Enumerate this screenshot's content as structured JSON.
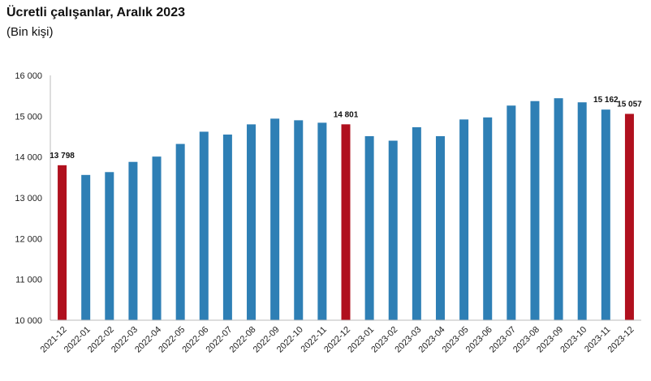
{
  "chart_data": {
    "type": "bar",
    "title": "Ücretli çalışanlar, Aralık 2023",
    "subtitle": "(Bin kişi)",
    "categories": [
      "2021-12",
      "2022-01",
      "2022-02",
      "2022-03",
      "2022-04",
      "2022-05",
      "2022-06",
      "2022-07",
      "2022-08",
      "2022-09",
      "2022-10",
      "2022-11",
      "2022-12",
      "2023-01",
      "2023-02",
      "2023-03",
      "2023-04",
      "2023-05",
      "2023-06",
      "2023-07",
      "2023-08",
      "2023-09",
      "2023-10",
      "2023-11",
      "2023-12"
    ],
    "values": [
      13798,
      13560,
      13630,
      13880,
      14010,
      14320,
      14620,
      14550,
      14800,
      14940,
      14900,
      14840,
      14801,
      14510,
      14400,
      14730,
      14510,
      14920,
      14970,
      15260,
      15370,
      15440,
      15340,
      15162,
      15057
    ],
    "highlight": [
      "2021-12",
      "2022-12",
      "2023-12"
    ],
    "data_labels": [
      {
        "category": "2021-12",
        "text": "13 798"
      },
      {
        "category": "2022-12",
        "text": "14 801"
      },
      {
        "category": "2023-11",
        "text": "15 162"
      },
      {
        "category": "2023-12",
        "text": "15 057"
      }
    ],
    "ylim": [
      10000,
      16000
    ],
    "yticks": [
      10000,
      11000,
      12000,
      13000,
      14000,
      15000,
      16000
    ],
    "ytick_labels": [
      "10 000",
      "11 000",
      "12 000",
      "13 000",
      "14 000",
      "15 000",
      "16 000"
    ],
    "xlabel": "",
    "ylabel": "",
    "grid": false,
    "colors": {
      "bar": "#2e7fb5",
      "highlight": "#b0101e",
      "axis": "#bbbbbb"
    }
  }
}
